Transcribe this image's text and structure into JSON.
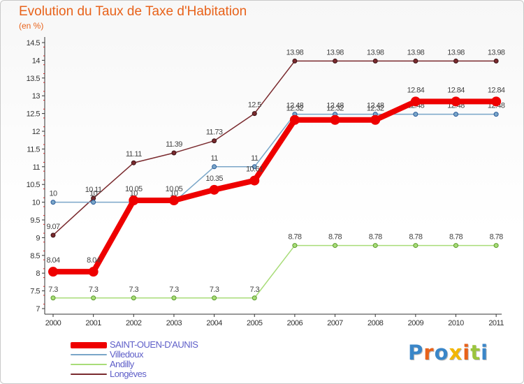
{
  "title": "Evolution du Taux de Taxe d'Habitation",
  "subtitle": "(en %)",
  "logo": {
    "text": "Proxiti",
    "colors": [
      "#3a86c8",
      "#e8621a",
      "#3a86c8",
      "#f2b600",
      "#e8621a",
      "#9bc53d",
      "#3a86c8"
    ]
  },
  "chart_data": {
    "type": "line",
    "title": "Evolution du Taux de Taxe d'Habitation",
    "ylabel": "(en %)",
    "xlabel": "",
    "x": [
      "2000",
      "2001",
      "2002",
      "2003",
      "2004",
      "2005",
      "2006",
      "2007",
      "2008",
      "2009",
      "2010",
      "2011"
    ],
    "ylim": [
      7,
      14.5
    ],
    "yticks": [
      "7",
      "7.5",
      "8",
      "8.5",
      "9",
      "9.5",
      "10",
      "10.5",
      "11",
      "11.5",
      "12",
      "12.5",
      "13",
      "13.5",
      "14",
      "14.5"
    ],
    "grid": false,
    "legend_position": "bottom-left",
    "series": [
      {
        "name": "Longèves",
        "color": "#7a2a2e",
        "values": [
          9.07,
          10.11,
          11.11,
          11.39,
          11.73,
          12.5,
          13.98,
          13.98,
          13.98,
          13.98,
          13.98,
          13.98
        ],
        "labels": [
          "9.07",
          "10.11",
          "11.11",
          "11.39",
          "11.73",
          "12.5",
          "13.98",
          "13.98",
          "13.98",
          "13.98",
          "13.98",
          "13.98"
        ]
      },
      {
        "name": "Andilly",
        "color": "#a8dc78",
        "values": [
          7.3,
          7.3,
          7.3,
          7.3,
          7.3,
          7.3,
          8.78,
          8.78,
          8.78,
          8.78,
          8.78,
          8.78
        ],
        "labels": [
          "7.3",
          "7.3",
          "7.3",
          "7.3",
          "7.3",
          "7.3",
          "8.78",
          "8.78",
          "8.78",
          "8.78",
          "8.78",
          "8.78"
        ]
      },
      {
        "name": "Villedoux",
        "color": "#7aa6c8",
        "values": [
          10,
          10,
          10,
          10,
          11,
          11,
          12.48,
          12.48,
          12.48,
          12.48,
          12.48,
          12.48
        ],
        "labels": [
          "10",
          "10",
          "10",
          "10",
          "11",
          "11",
          "12.48",
          "12.48",
          "12.48",
          "12.48",
          "12.48",
          "12.48"
        ]
      },
      {
        "name": "SAINT-OUEN-D'AUNIS",
        "color": "#ee0000",
        "values": [
          8.04,
          8.04,
          10.05,
          10.05,
          10.35,
          10.61,
          12.32,
          12.32,
          12.32,
          12.84,
          12.84,
          12.84
        ],
        "labels": [
          "8.04",
          "8.04",
          "10.05",
          "10.05",
          "10.35",
          "10.61",
          "12.32",
          "12.32",
          "12.32",
          "12.84",
          "12.84",
          "12.84"
        ]
      }
    ],
    "legend": [
      "SAINT-OUEN-D'AUNIS",
      "Villedoux",
      "Andilly",
      "Longèves"
    ]
  }
}
